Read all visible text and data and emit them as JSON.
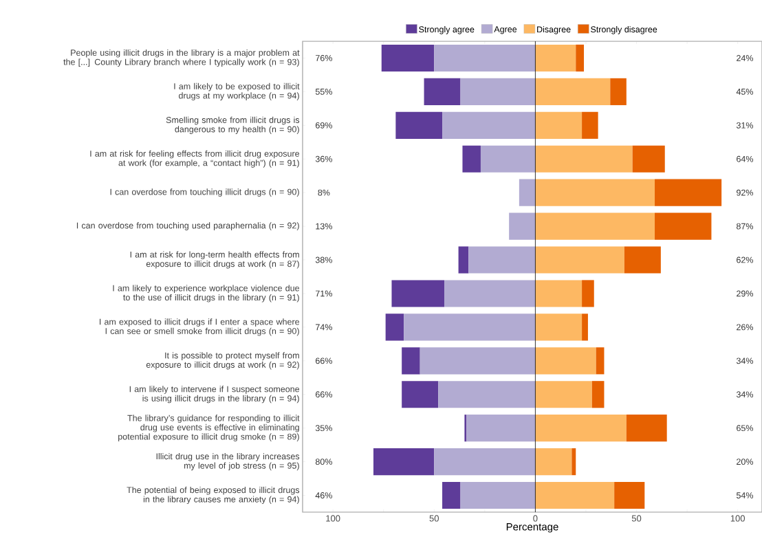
{
  "chart_data": {
    "type": "bar",
    "orientation": "horizontal",
    "stacked": true,
    "xlabel": "Percentage",
    "categories": [
      "People using illicit drugs in the library is a major problem at the [...] County Library branch where I typically work (n = 93)",
      "I am likely to be exposed to illicit drugs at my workplace (n = 94)",
      "Smelling smoke from illicit drugs is dangerous to my health (n = 90)",
      "I am at risk for feeling effects from illicit drug exposure at work (for example, a “contact high”) (n = 91)",
      "I can overdose from touching illicit drugs (n = 90)",
      "I can overdose from touching used paraphernalia (n = 92)",
      "I am at risk for long-term health effects from exposure to illicit drugs at work (n = 87)",
      "I am likely to experience workplace violence due to the use of illicit drugs in the library (n = 91)",
      "I am exposed to illicit drugs if I enter a space where I can see or smell smoke from illicit drugs (n = 90)",
      "It is possible to protect myself from exposure to illicit drugs at work (n = 92)",
      "I am likely to intervene if I suspect someone is using illicit drugs in the library (n = 94)",
      "The library’s guidance for responding to illicit drug use events is effective in eliminating potential exposure to illicit drug smoke (n = 89)",
      "Illicit drug use in the library increases my level of job stress (n = 95)",
      "The potential of being exposed to illicit drugs in the library causes me anxiety (n = 94)"
    ],
    "series": [
      {
        "name": "Strongly agree",
        "color": "#5e3c99",
        "values": [
          -26,
          -18,
          -23,
          -9,
          0,
          0,
          -5,
          -26,
          -9,
          -9,
          -18,
          -1,
          -30,
          -9
        ]
      },
      {
        "name": "Agree",
        "color": "#b2abd2",
        "values": [
          -50,
          -37,
          -46,
          -27,
          -8,
          -13,
          -33,
          -45,
          -65,
          -57,
          -48,
          -34,
          -50,
          -37
        ]
      },
      {
        "name": "Disagree",
        "color": "#fdb863",
        "values": [
          20,
          37,
          23,
          48,
          59,
          59,
          44,
          23,
          23,
          30,
          28,
          45,
          18,
          39
        ]
      },
      {
        "name": "Strongly disagree",
        "color": "#e66101",
        "values": [
          4,
          8,
          8,
          16,
          33,
          28,
          18,
          6,
          3,
          4,
          6,
          20,
          2,
          15
        ]
      }
    ],
    "xlim": [
      -115,
      112
    ],
    "xticks": [
      {
        "value": -100,
        "label": "100"
      },
      {
        "value": -75,
        "label": null
      },
      {
        "value": -50,
        "label": "50"
      },
      {
        "value": -25,
        "label": null
      },
      0,
      {
        "value": 25,
        "label": null
      },
      50,
      {
        "value": 75,
        "label": null
      },
      100
    ],
    "ref_lines": [
      {
        "axis": "x",
        "value": 0,
        "color": "#000000"
      }
    ],
    "legend": "top",
    "annotations": [
      "76%",
      "24%",
      "55%",
      "45%",
      "69%",
      "31%",
      "36%",
      "64%",
      "8%",
      "92%",
      "13%",
      "87%",
      "38%",
      "62%",
      "71%",
      "29%",
      "74%",
      "26%",
      "66%",
      "34%",
      "66%",
      "34%",
      "35%",
      "65%",
      "80%",
      "20%",
      "46%",
      "54%"
    ]
  }
}
